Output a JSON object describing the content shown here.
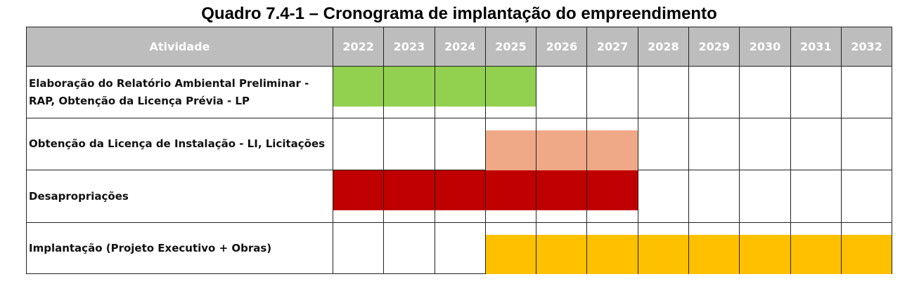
{
  "title": "Quadro 7.4-1 – Cronograma de implantação do empreendimento",
  "table": {
    "activity_header": "Atividade",
    "years": [
      "2022",
      "2023",
      "2024",
      "2025",
      "2026",
      "2027",
      "2028",
      "2029",
      "2030",
      "2031",
      "2032"
    ],
    "rows": [
      {
        "activity": "Elaboração do Relatório Ambiental Preliminar - RAP, Obtenção da Licença Prévia - LP",
        "start_year": "2022",
        "end_year": "2025",
        "color": "#92d050"
      },
      {
        "activity": "Obtenção da Licença de Instalação - LI, Licitações",
        "start_year": "2025",
        "end_year": "2027",
        "color": "#f0a987"
      },
      {
        "activity": "Desapropriações",
        "start_year": "2022",
        "end_year": "2027",
        "color": "#c00000"
      },
      {
        "activity": "Implantação (Projeto Executivo + Obras)",
        "start_year": "2025",
        "end_year": "2032",
        "color": "#ffc000"
      }
    ]
  }
}
